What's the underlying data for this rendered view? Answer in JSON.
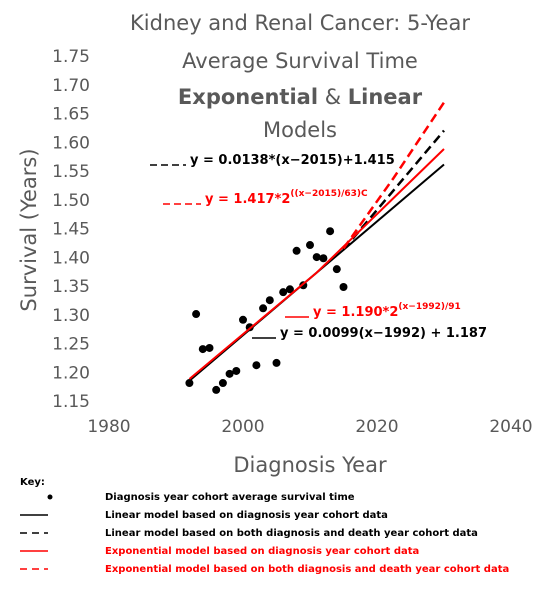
{
  "chart_data": {
    "type": "scatter",
    "title_lines": [
      "Kidney and Renal Cancer: 5-Year",
      "Average Survival Time"
    ],
    "title_models": [
      "Exponential",
      " & ",
      "Linear"
    ],
    "title_last": "Models",
    "x_label": "Diagnosis Year",
    "y_label": "Survival (Years)",
    "xlim": [
      1980,
      2040
    ],
    "xticks": [
      1980,
      2000,
      2020,
      2040
    ],
    "ylim": [
      1.15,
      1.75
    ],
    "yticks": [
      {
        "value": 1.15,
        "label": "1.15"
      },
      {
        "value": 1.2,
        "label": "1.20"
      },
      {
        "value": 1.25,
        "label": "1.25"
      },
      {
        "value": 1.3,
        "label": "1.30"
      },
      {
        "value": 1.35,
        "label": "1.35"
      },
      {
        "value": 1.4,
        "label": "1.40"
      },
      {
        "value": 1.45,
        "label": "1.45"
      },
      {
        "value": 1.5,
        "label": "1.50"
      },
      {
        "value": 1.55,
        "label": "1.55"
      },
      {
        "value": 1.6,
        "label": "1.60"
      },
      {
        "value": 1.65,
        "label": "1.65"
      },
      {
        "value": 1.7,
        "label": "1.70"
      },
      {
        "value": 1.75,
        "label": "1.75"
      }
    ],
    "grid": false,
    "legend_title": "Key:",
    "series": [
      {
        "name": "Diagnosis year cohort average survival time",
        "kind": "points",
        "color": "#000000",
        "x": [
          1992,
          1993,
          1994,
          1995,
          1996,
          1997,
          1998,
          1999,
          2000,
          2001,
          2002,
          2003,
          2004,
          2005,
          2006,
          2007,
          2008,
          2009,
          2010,
          2011,
          2012,
          2013,
          2014,
          2015
        ],
        "values": [
          1.183,
          1.303,
          1.242,
          1.244,
          1.171,
          1.183,
          1.199,
          1.204,
          1.293,
          1.28,
          1.214,
          1.313,
          1.327,
          1.218,
          1.341,
          1.346,
          1.413,
          1.353,
          1.423,
          1.402,
          1.4,
          1.447,
          1.381,
          1.35
        ]
      },
      {
        "name": "Linear model based on diagnosis year cohort data",
        "kind": "line",
        "dashed": false,
        "color": "#000000",
        "x": [
          1992,
          2030
        ],
        "values": [
          1.187,
          1.563
        ]
      },
      {
        "name": "Linear model based on both diagnosis and death year cohort data",
        "kind": "line",
        "dashed": true,
        "color": "#000000",
        "x": [
          2015,
          2030
        ],
        "values": [
          1.415,
          1.622
        ]
      },
      {
        "name": "Exponential model based on diagnosis year cohort data",
        "kind": "line",
        "dashed": false,
        "color": "#ff0000",
        "x": [
          1992,
          2011,
          2030
        ],
        "values": [
          1.19,
          1.375,
          1.59
        ]
      },
      {
        "name": "Exponential model based on both diagnosis and death year cohort data",
        "kind": "line",
        "dashed": true,
        "color": "#ff0000",
        "x": [
          2015,
          2022.5,
          2030
        ],
        "values": [
          1.417,
          1.54,
          1.671
        ]
      }
    ],
    "annotations": [
      {
        "text": "y = 0.0138*(x−2015)+1.415",
        "color": "#000000",
        "dashed": true
      },
      {
        "text": "y = 1.417*2",
        "superscript": "((x−2015)/63)C",
        "color": "#ff0000",
        "dashed": true
      },
      {
        "text": "y = 1.190*2",
        "superscript": "(x−1992)/91",
        "color": "#ff0000",
        "dashed": false
      },
      {
        "text": "y = 0.0099(x−1992) + 1.187",
        "color": "#000000",
        "dashed": false
      }
    ]
  }
}
